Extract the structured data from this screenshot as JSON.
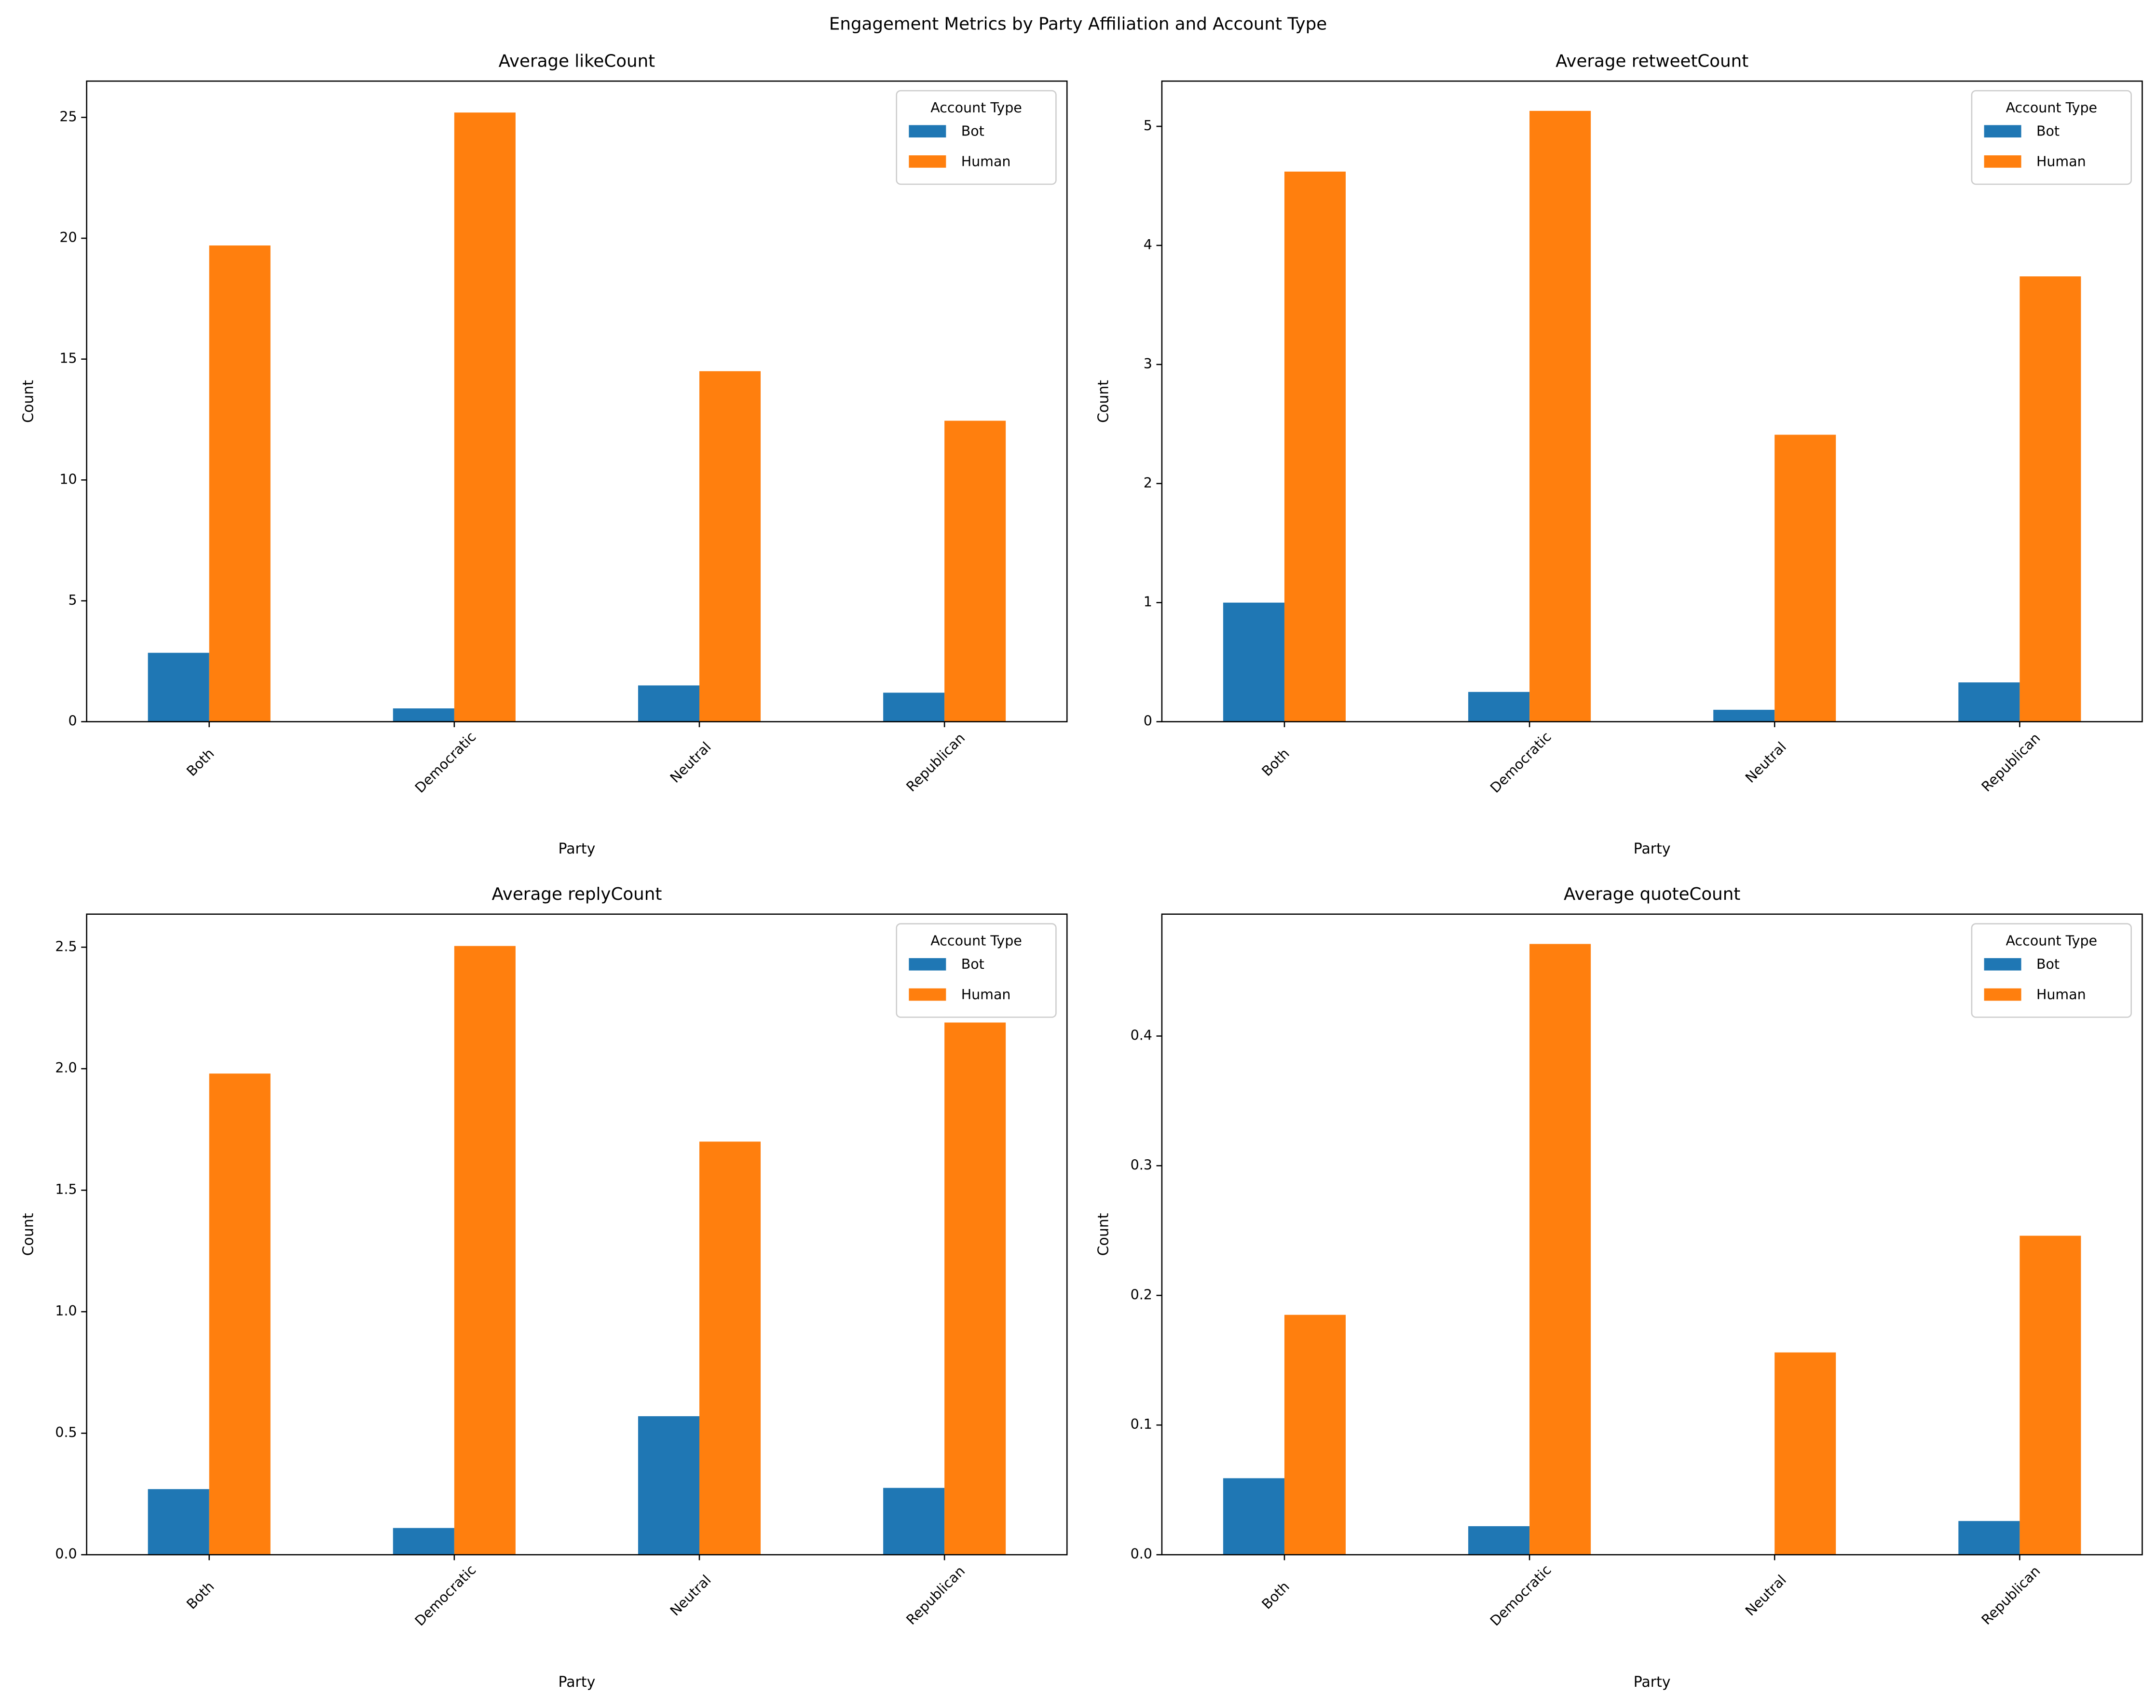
{
  "title": "Engagement Metrics by Party Affiliation and Account Type",
  "chart_data": [
    {
      "type": "bar",
      "title": "Average likeCount",
      "xlabel": "Party",
      "ylabel": "Count",
      "categories": [
        "Both",
        "Democratic",
        "Neutral",
        "Republican"
      ],
      "series": [
        {
          "name": "Bot",
          "color": "#1f77b4",
          "values": [
            2.85,
            0.55,
            1.5,
            1.2
          ]
        },
        {
          "name": "Human",
          "color": "#ff7f0e",
          "values": [
            19.7,
            25.2,
            14.5,
            12.45
          ]
        }
      ],
      "ylim": [
        0,
        26.5
      ],
      "yticks": [
        0,
        5,
        10,
        15,
        20,
        25
      ],
      "legend_title": "Account Type",
      "legend": "upper right"
    },
    {
      "type": "bar",
      "title": "Average retweetCount",
      "xlabel": "Party",
      "ylabel": "Count",
      "categories": [
        "Both",
        "Democratic",
        "Neutral",
        "Republican"
      ],
      "series": [
        {
          "name": "Bot",
          "color": "#1f77b4",
          "values": [
            1.0,
            0.25,
            0.1,
            0.33
          ]
        },
        {
          "name": "Human",
          "color": "#ff7f0e",
          "values": [
            4.62,
            5.13,
            2.41,
            3.74
          ]
        }
      ],
      "ylim": [
        0,
        5.38
      ],
      "yticks": [
        0,
        1,
        2,
        3,
        4,
        5
      ],
      "legend_title": "Account Type",
      "legend": "upper right"
    },
    {
      "type": "bar",
      "title": "Average replyCount",
      "xlabel": "Party",
      "ylabel": "Count",
      "categories": [
        "Both",
        "Democratic",
        "Neutral",
        "Republican"
      ],
      "series": [
        {
          "name": "Bot",
          "color": "#1f77b4",
          "values": [
            0.27,
            0.11,
            0.57,
            0.275
          ]
        },
        {
          "name": "Human",
          "color": "#ff7f0e",
          "values": [
            1.98,
            2.505,
            1.7,
            2.19
          ]
        }
      ],
      "ylim": [
        0,
        2.636
      ],
      "yticks": [
        {
          "value": 0,
          "label": "0.0"
        },
        0.5,
        {
          "value": 1,
          "label": "1.0"
        },
        1.5,
        {
          "value": 2,
          "label": "2.0"
        },
        2.5
      ],
      "legend_title": "Account Type",
      "legend": "upper right"
    },
    {
      "type": "bar",
      "title": "Average quoteCount",
      "xlabel": "Party",
      "ylabel": "Count",
      "categories": [
        "Both",
        "Democratic",
        "Neutral",
        "Republican"
      ],
      "series": [
        {
          "name": "Bot",
          "color": "#1f77b4",
          "values": [
            0.059,
            0.022,
            0,
            0.026
          ]
        },
        {
          "name": "Human",
          "color": "#ff7f0e",
          "values": [
            0.185,
            0.471,
            0.156,
            0.246
          ]
        }
      ],
      "ylim": [
        0,
        0.494
      ],
      "yticks": [
        {
          "value": 0,
          "label": "0.0"
        },
        0.1,
        0.2,
        0.3,
        0.4
      ],
      "legend_title": "Account Type",
      "legend": "upper right"
    }
  ]
}
